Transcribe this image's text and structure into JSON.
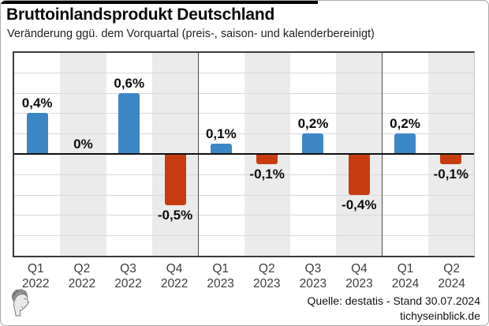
{
  "header": {
    "title": "Bruttoinlandsprodukt Deutschland",
    "subtitle": "Veränderung ggü. dem Vorquartal (preis-, saison- und kalenderbereinigt)"
  },
  "chart_data": {
    "type": "bar",
    "title": "Bruttoinlandsprodukt Deutschland",
    "subtitle": "Veränderung ggü. dem Vorquartal (preis-, saison- und kalenderbereinigt)",
    "unit": "%",
    "categories": [
      "Q1 2022",
      "Q2 2022",
      "Q3 2022",
      "Q4 2022",
      "Q1 2023",
      "Q2 2023",
      "Q3 2023",
      "Q4 2023",
      "Q1 2024",
      "Q2 2024"
    ],
    "x_labels": [
      {
        "quarter": "Q1",
        "year": "2022"
      },
      {
        "quarter": "Q2",
        "year": "2022"
      },
      {
        "quarter": "Q3",
        "year": "2022"
      },
      {
        "quarter": "Q4",
        "year": "2022"
      },
      {
        "quarter": "Q1",
        "year": "2023"
      },
      {
        "quarter": "Q2",
        "year": "2023"
      },
      {
        "quarter": "Q3",
        "year": "2023"
      },
      {
        "quarter": "Q4",
        "year": "2023"
      },
      {
        "quarter": "Q1",
        "year": "2024"
      },
      {
        "quarter": "Q2",
        "year": "2024"
      }
    ],
    "values": [
      0.4,
      0.0,
      0.6,
      -0.5,
      0.1,
      -0.1,
      0.2,
      -0.4,
      0.2,
      -0.1
    ],
    "value_labels": [
      "0,4%",
      "0%",
      "0,6%",
      "-0,5%",
      "0,1%",
      "-0,1%",
      "0,2%",
      "-0,4%",
      "0,2%",
      "-0,1%"
    ],
    "ylim": [
      -1.0,
      1.0
    ],
    "grid_step": 0.2,
    "grid": "on",
    "legend": "none",
    "year_separators_after_index": [
      3,
      7
    ],
    "colors": {
      "positive_bar": "#3d86c6",
      "negative_bar": "#c63c10",
      "column_stripe": "#ebebeb",
      "gridline": "#d9d9d9",
      "zero_line": "#111111",
      "plot_border": "#3b3b3b",
      "axis_label": "#3d3d3d",
      "top_accent_bar": "#000000"
    }
  },
  "footer": {
    "source_line": "Quelle: destatis - Stand 30.07.2024",
    "website": "tichyseinblick.de",
    "logo_name": "classical-head-logo"
  }
}
